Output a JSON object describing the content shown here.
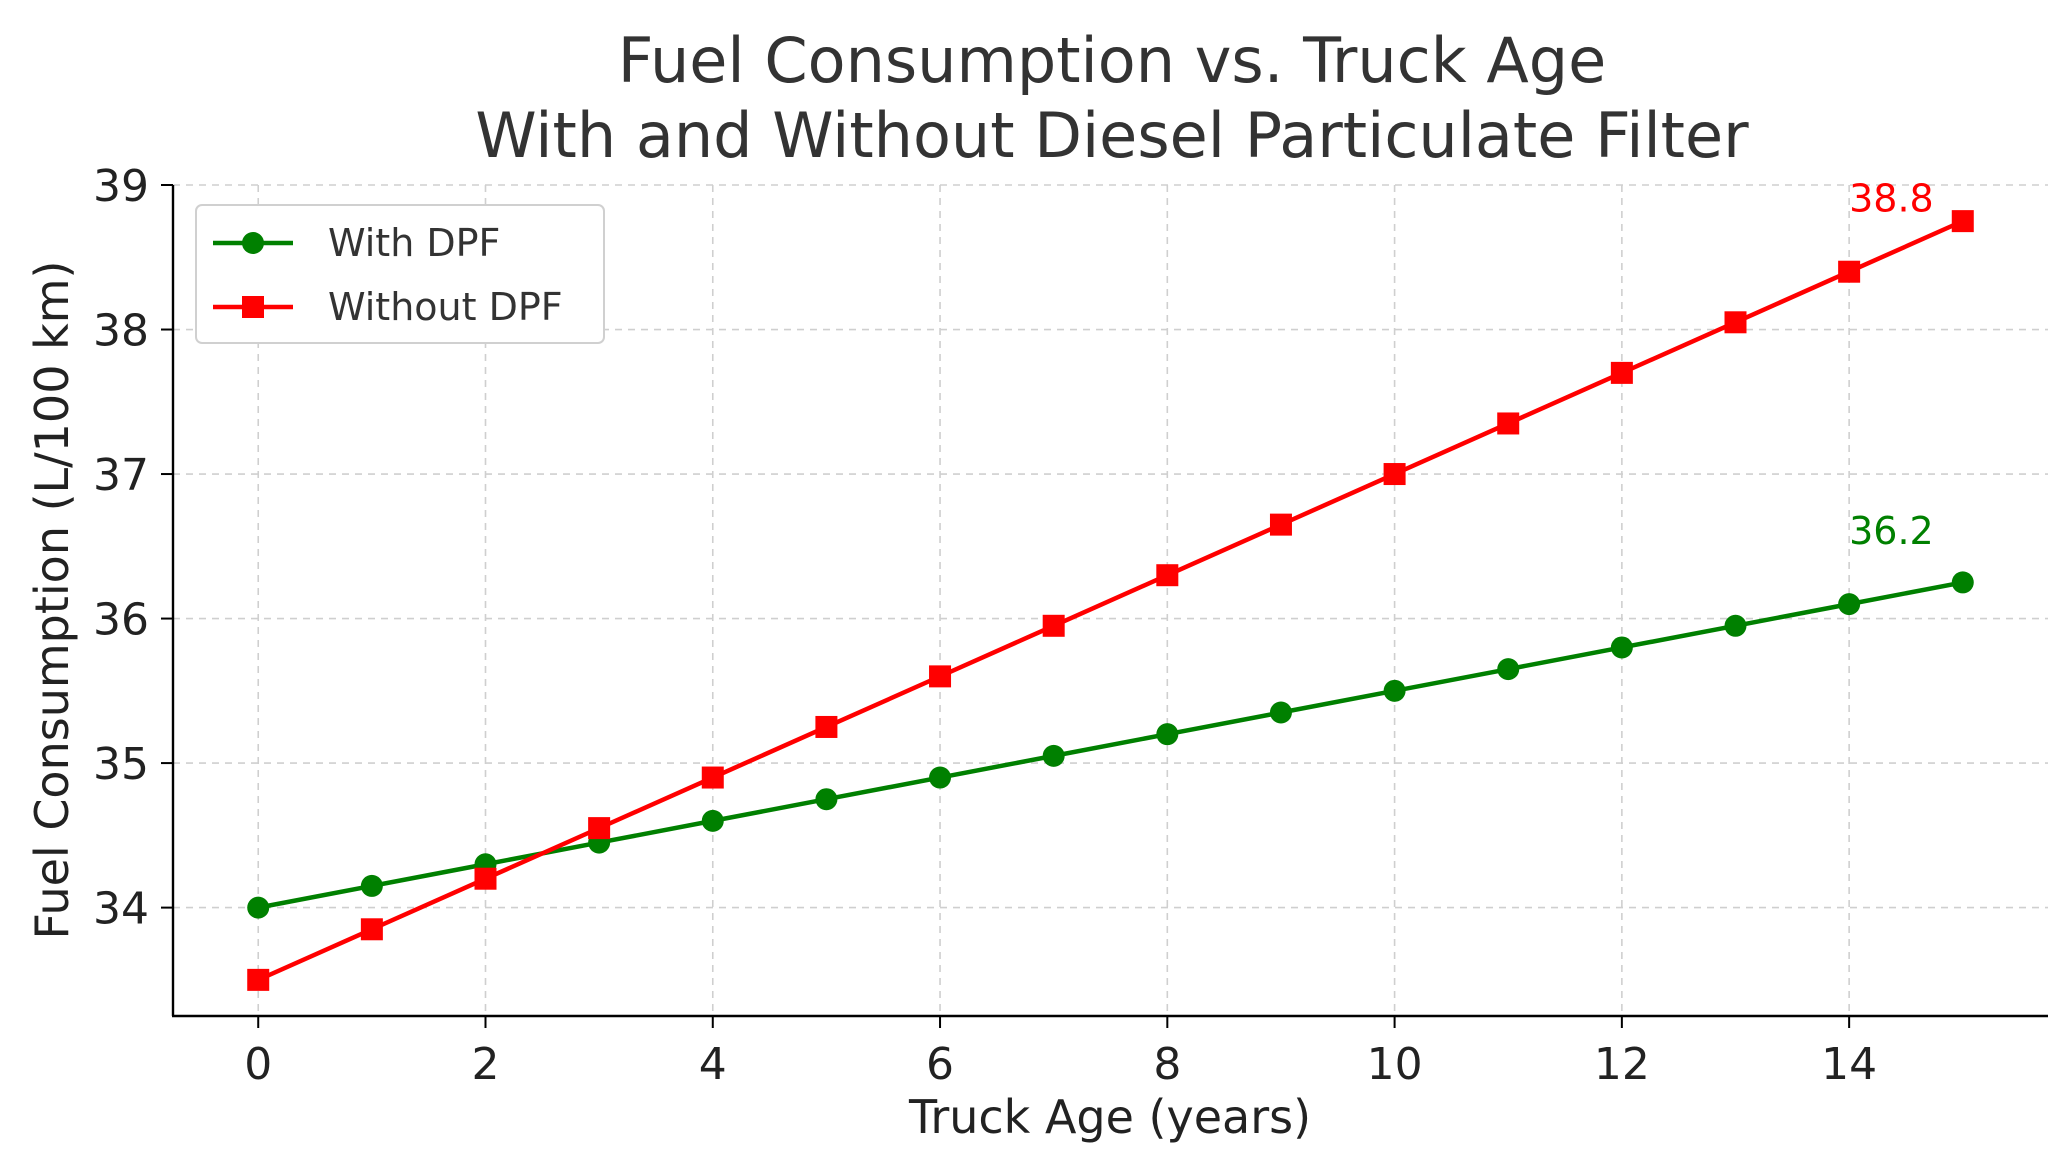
{
  "chart_data": {
    "type": "line",
    "title_lines": [
      "Fuel Consumption vs. Truck Age",
      "With and Without Diesel Particulate Filter"
    ],
    "xlabel": "Truck Age (years)",
    "ylabel": "Fuel Consumption (L/100 km)",
    "x": [
      0,
      1,
      2,
      3,
      4,
      5,
      6,
      7,
      8,
      9,
      10,
      11,
      12,
      13,
      14,
      15
    ],
    "xlim": [
      -0.75,
      15.75
    ],
    "ylim": [
      33.25,
      39.0
    ],
    "xticks": [
      0,
      2,
      4,
      6,
      8,
      10,
      12,
      14
    ],
    "yticks": [
      34,
      35,
      36,
      37,
      38,
      39
    ],
    "grid": true,
    "legend_position": "top-left",
    "series": [
      {
        "name": "With DPF",
        "color": "#008000",
        "marker": "circle",
        "values": [
          34.0,
          34.15,
          34.3,
          34.45,
          34.6,
          34.75,
          34.9,
          35.05,
          35.2,
          35.35,
          35.5,
          35.65,
          35.8,
          35.95,
          36.1,
          36.25
        ],
        "end_label": "36.2"
      },
      {
        "name": "Without DPF",
        "color": "#ff0000",
        "marker": "square",
        "values": [
          33.5,
          33.85,
          34.2,
          34.55,
          34.9,
          35.25,
          35.6,
          35.95,
          36.3,
          36.65,
          37.0,
          37.35,
          37.7,
          38.05,
          38.4,
          38.75
        ],
        "end_label": "38.8"
      }
    ]
  }
}
